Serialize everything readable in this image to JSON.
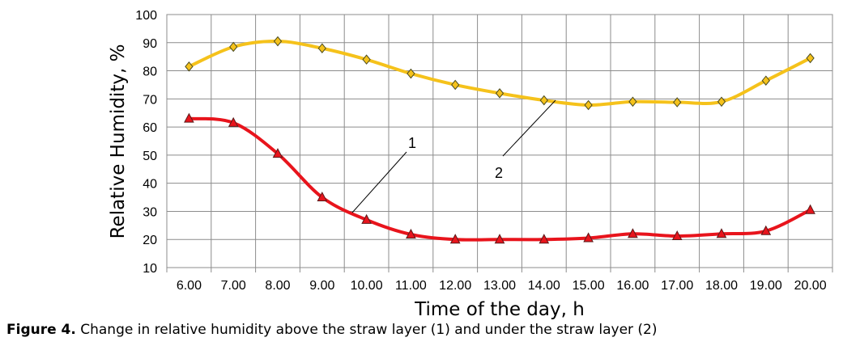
{
  "chart_data": {
    "type": "line",
    "xlabel": "Time of the day, h",
    "ylabel": "Relative Humidity, %",
    "categories": [
      "6.00",
      "7.00",
      "8.00",
      "9.00",
      "10.00",
      "11.00",
      "12.00",
      "13.00",
      "14.00",
      "15.00",
      "16.00",
      "17.00",
      "18.00",
      "19.00",
      "20.00"
    ],
    "ylim": [
      10,
      100
    ],
    "yticks": [
      10,
      20,
      30,
      40,
      50,
      60,
      70,
      80,
      90,
      100
    ],
    "grid": true,
    "legend": "none",
    "series": [
      {
        "name": "1",
        "color": "#e8141c",
        "marker": "triangle",
        "values": [
          63,
          61.5,
          50.5,
          35,
          27,
          21.8,
          20,
          20,
          20,
          20.5,
          22,
          21.2,
          22,
          23,
          30.5
        ]
      },
      {
        "name": "2",
        "color": "#f5c21b",
        "marker": "diamond",
        "values": [
          81.5,
          88.5,
          90.5,
          88,
          84,
          79,
          75,
          72,
          69.5,
          67.8,
          69,
          68.8,
          69,
          76.5,
          84.5
        ]
      }
    ],
    "annotations": [
      {
        "label": "1",
        "series": "1"
      },
      {
        "label": "2",
        "series": "2"
      }
    ]
  },
  "caption": {
    "prefix": "Figure 4.",
    "text": "Change in relative humidity above the straw layer (1) and under the straw layer (2)"
  }
}
